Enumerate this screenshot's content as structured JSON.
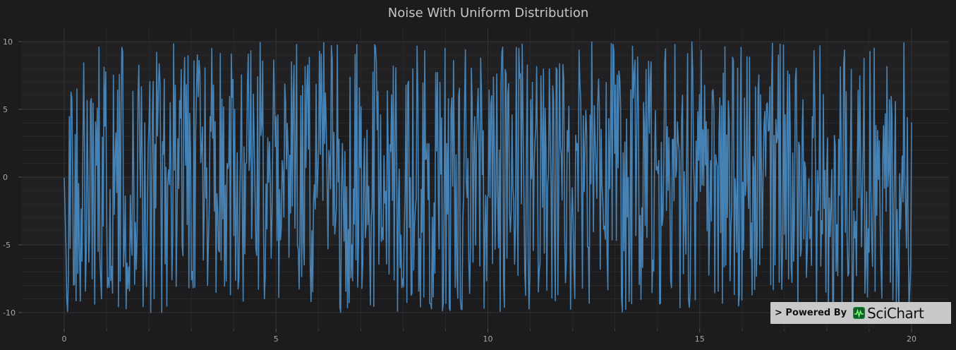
{
  "chart_data": {
    "type": "line",
    "title": "Noise With Uniform Distribution",
    "xlabel": "",
    "ylabel": "",
    "xlim": [
      0,
      20
    ],
    "ylim": [
      -10,
      10
    ],
    "x_ticks": [
      0,
      5,
      10,
      15,
      20
    ],
    "y_ticks": [
      10,
      5,
      0,
      -5,
      -10
    ],
    "x_tick_labels": [
      "0",
      "5",
      "10",
      "15",
      "20"
    ],
    "y_tick_labels": [
      "10",
      "5",
      "0",
      "-5",
      "-10"
    ],
    "grid": true,
    "series": [
      {
        "distribution": "uniform",
        "x_range": [
          0,
          20
        ],
        "y_range": [
          -10,
          10
        ],
        "point_count": 1000,
        "color": "#4682b4"
      }
    ]
  },
  "colors": {
    "background": "#1c1c1e",
    "plot_band": "#212123",
    "grid_major": "#333336",
    "grid_minor": "#29292b",
    "line": "#4682b4",
    "text": "#a8a8a8",
    "title": "#c5c5c5"
  },
  "watermark": {
    "prefix": "> Powered By",
    "brand": "SciChart",
    "logo_icon": "scichart-logo-icon"
  }
}
